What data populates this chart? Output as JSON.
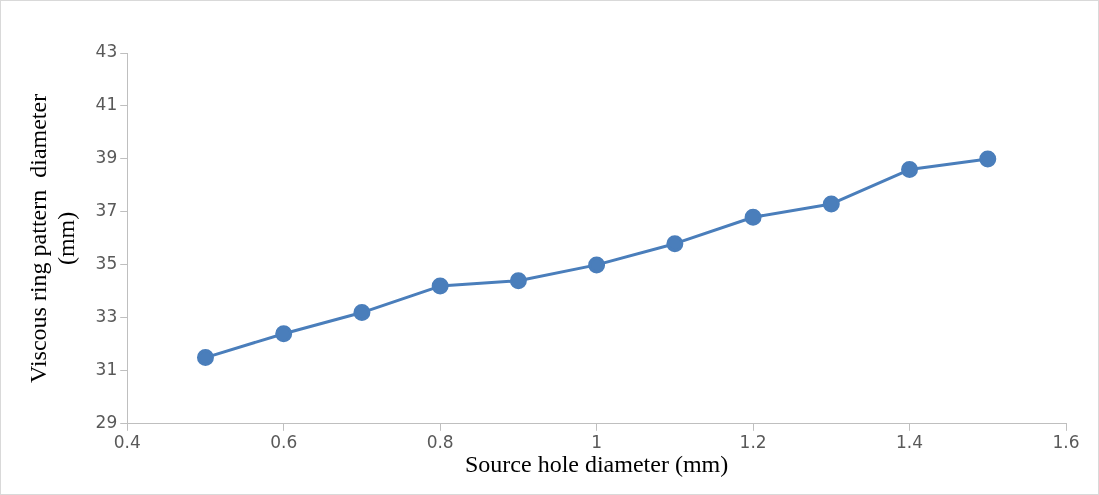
{
  "chart_data": {
    "type": "line",
    "xlabel": "Source hole diameter (mm)",
    "ylabel": "Viscous ring pattern  diameter (mm)",
    "x": [
      0.5,
      0.6,
      0.7,
      0.8,
      0.9,
      1.0,
      1.1,
      1.2,
      1.3,
      1.4,
      1.5
    ],
    "series": [
      {
        "color": "#4a7ebb",
        "values": [
          31.5,
          32.4,
          33.2,
          34.2,
          34.4,
          35.0,
          35.8,
          36.8,
          37.3,
          38.6,
          39.0
        ]
      }
    ],
    "xlim": [
      0.4,
      1.6
    ],
    "xticks": [
      0.4,
      0.6,
      0.8,
      1,
      1.2,
      1.4,
      1.6
    ],
    "ylim": [
      29,
      43
    ],
    "yticks": [
      29,
      31,
      33,
      35,
      37,
      39,
      41,
      43
    ],
    "grid": false,
    "legend": false,
    "marker": "circle",
    "line_style": "solid"
  }
}
